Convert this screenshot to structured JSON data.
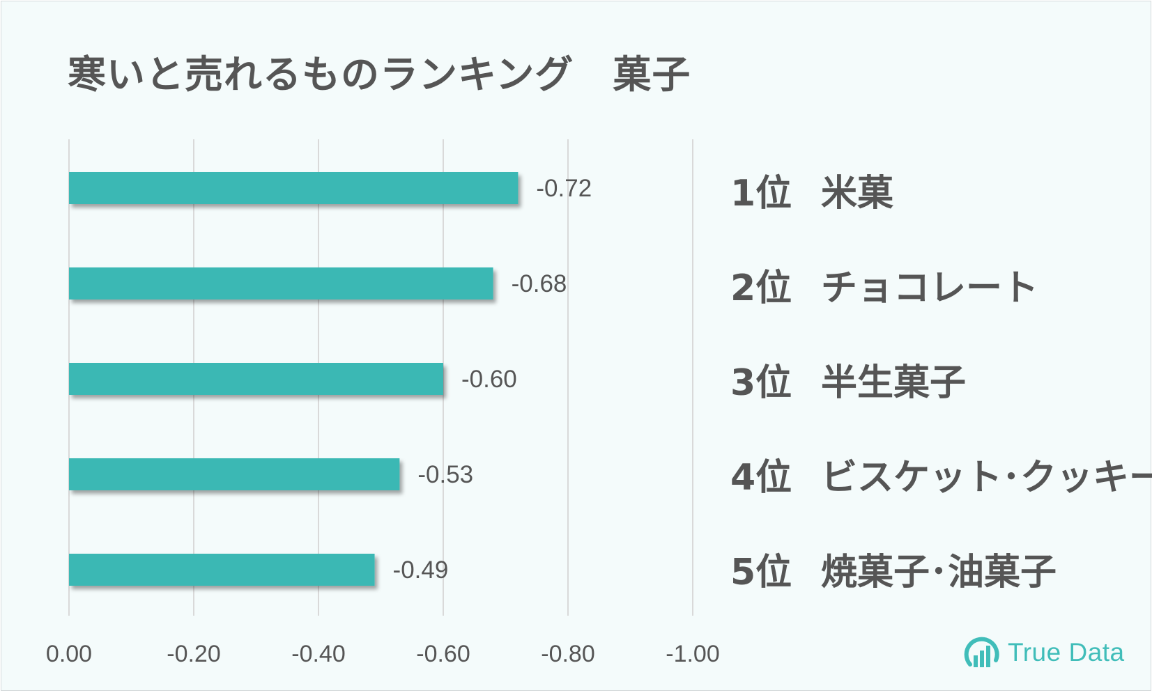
{
  "title": "寒いと売れるものランキング　菓子",
  "ranking": [
    {
      "rank": "1位",
      "name": "米菓"
    },
    {
      "rank": "2位",
      "name": "チョコレート"
    },
    {
      "rank": "3位",
      "name": "半生菓子"
    },
    {
      "rank": "4位",
      "name": "ビスケット･クッキー"
    },
    {
      "rank": "5位",
      "name": "焼菓子･油菓子"
    }
  ],
  "logo": {
    "text": "True Data",
    "icon": "bar-chart-circle-icon"
  },
  "colors": {
    "bar": "#3bb8b4",
    "text": "#555555",
    "grid": "#d9d9d9",
    "background": "#f4fbfb",
    "logo": "#40bdb9"
  },
  "chart_data": {
    "type": "bar",
    "orientation": "horizontal",
    "categories": [
      "米菓",
      "チョコレート",
      "半生菓子",
      "ビスケット･クッキー",
      "焼菓子･油菓子"
    ],
    "values": [
      -0.72,
      -0.68,
      -0.6,
      -0.53,
      -0.49
    ],
    "data_labels": [
      "-0.72",
      "-0.68",
      "-0.60",
      "-0.53",
      "-0.49"
    ],
    "x_ticks": [
      "0.00",
      "-0.20",
      "-0.40",
      "-0.60",
      "-0.80",
      "-1.00"
    ],
    "xlim": [
      0,
      -1.0
    ],
    "grid": true,
    "legend": "none"
  }
}
